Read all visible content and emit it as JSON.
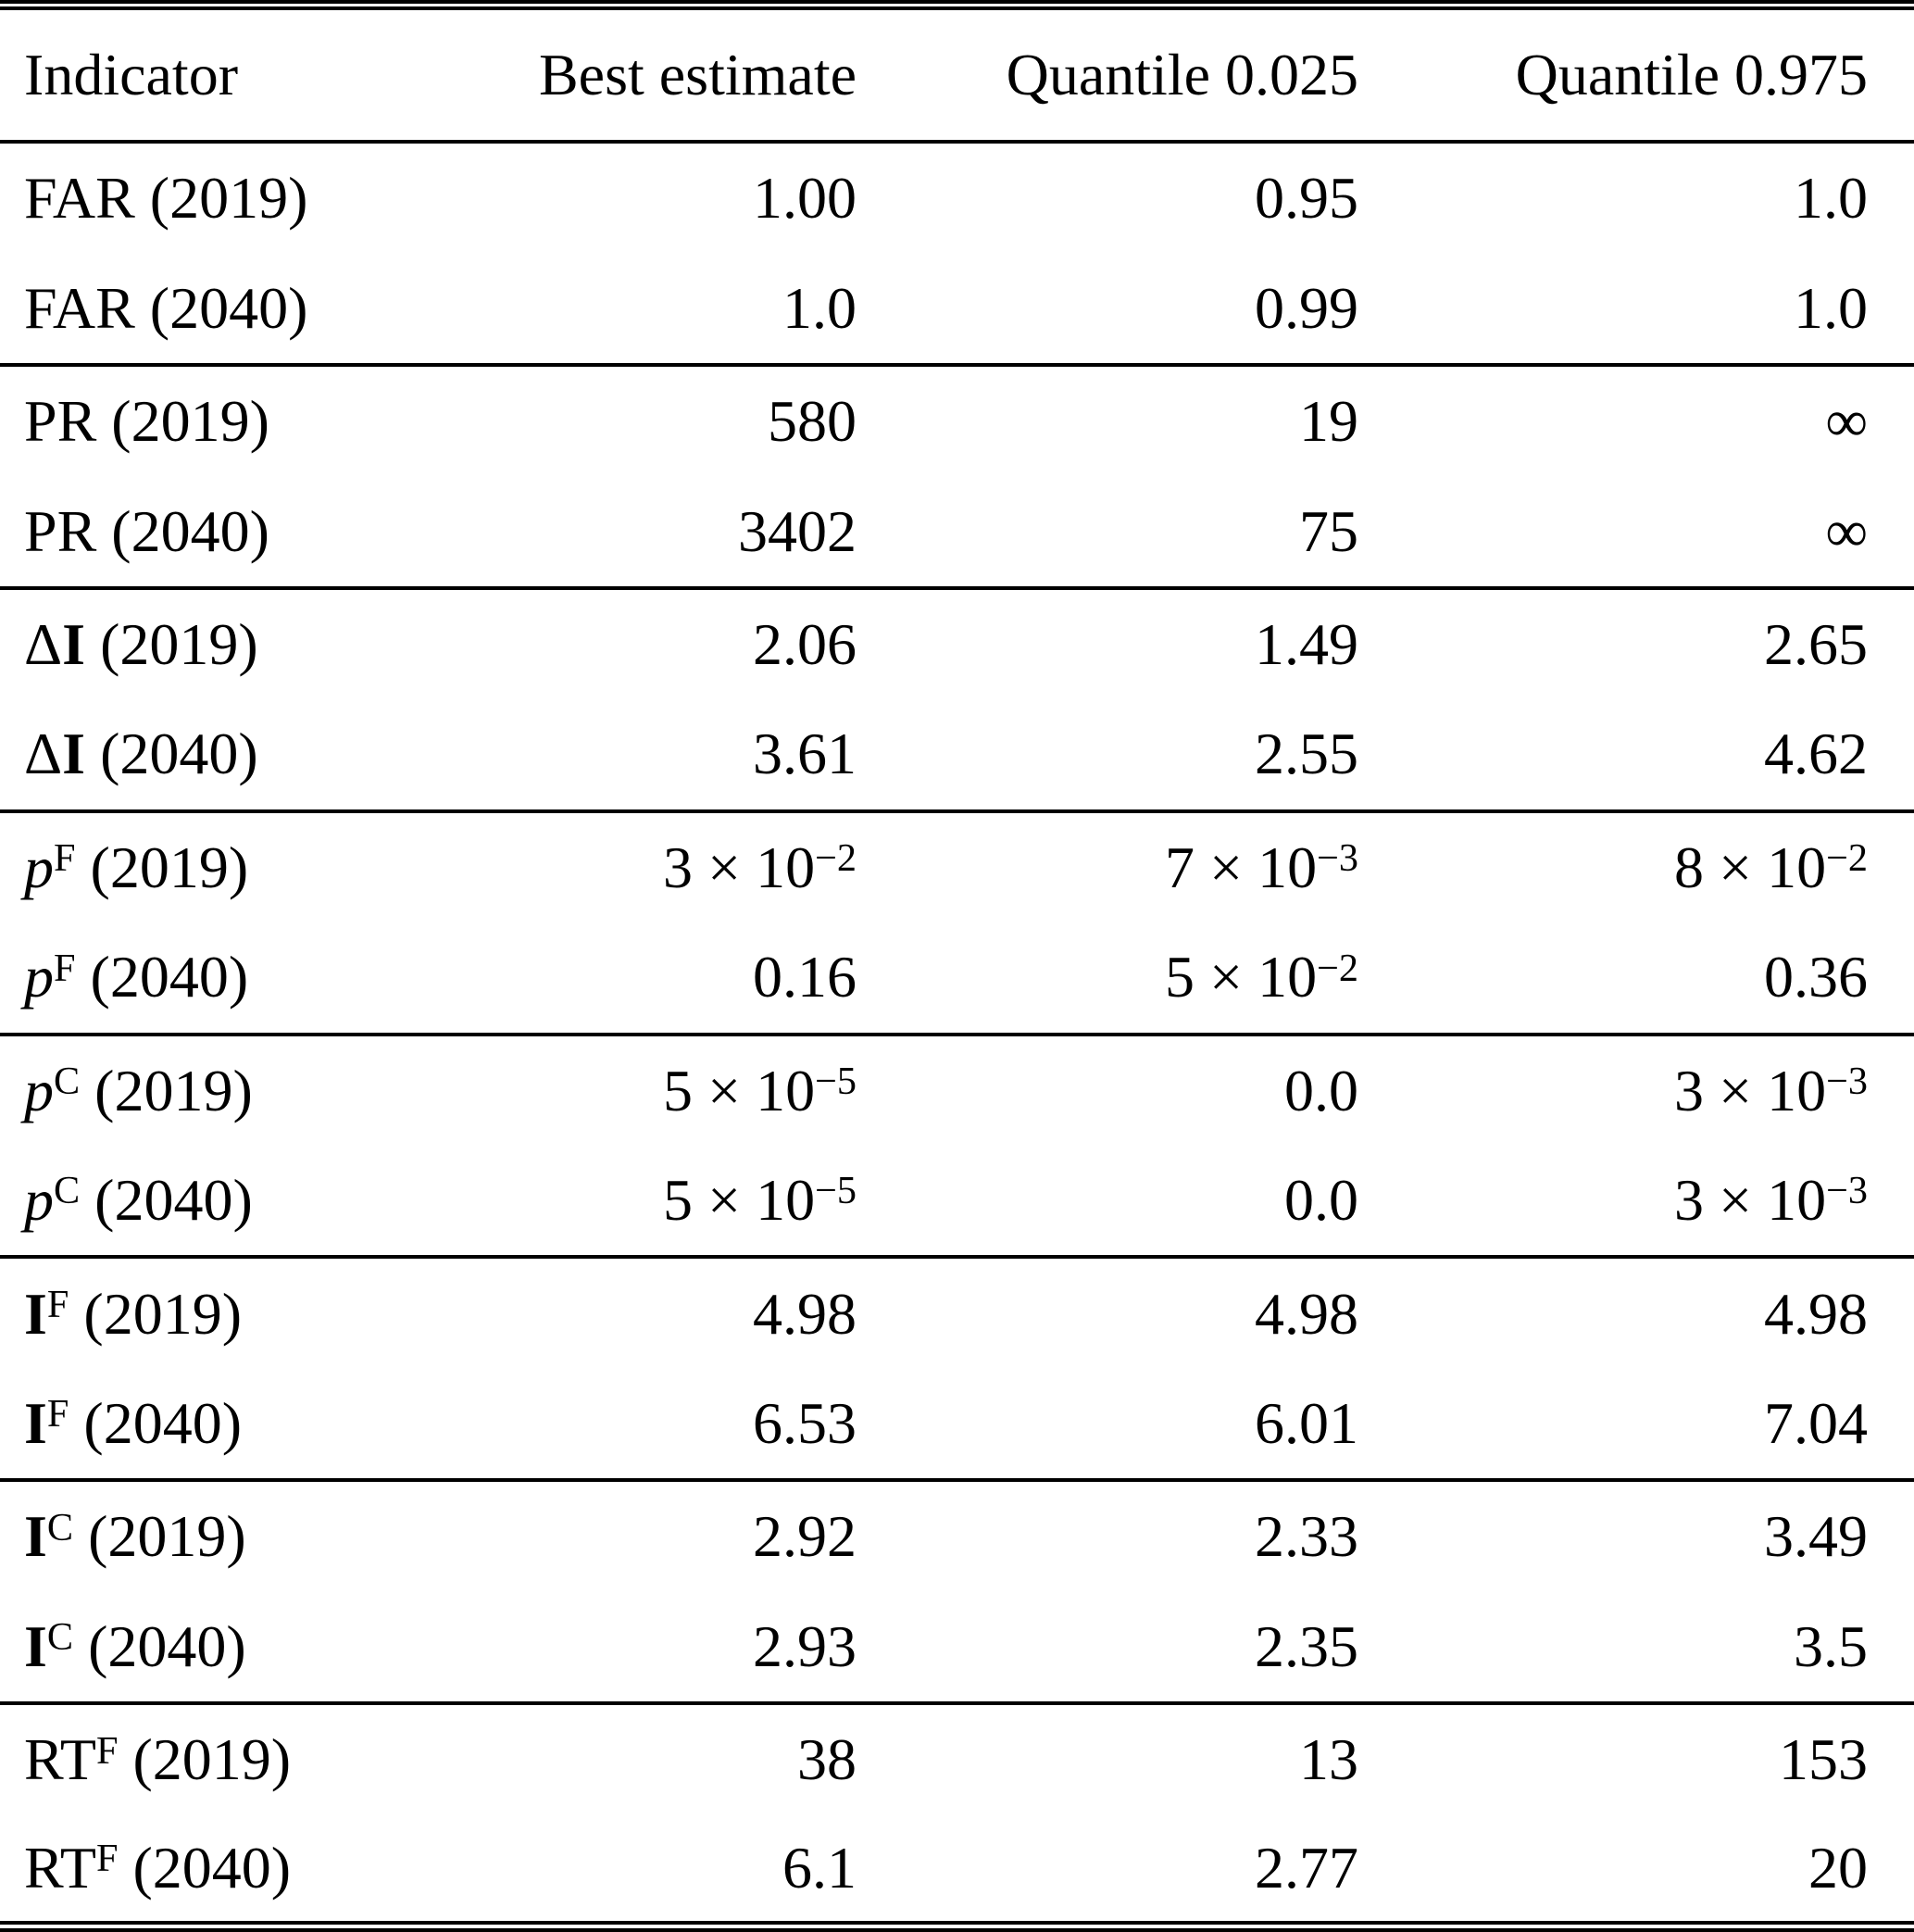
{
  "table": {
    "columns": [
      "Indicator",
      "Best estimate",
      "Quantile 0.025",
      "Quantile 0.975"
    ],
    "groups": [
      {
        "rows": [
          {
            "indicator": {
              "prefix": "",
              "base": "FAR",
              "bold": false,
              "italic": false,
              "sup": "",
              "year": "(2019)"
            },
            "values": [
              "1.00",
              "0.95",
              "1.0"
            ]
          },
          {
            "indicator": {
              "prefix": "",
              "base": "FAR",
              "bold": false,
              "italic": false,
              "sup": "",
              "year": "(2040)"
            },
            "values": [
              "1.0",
              "0.99",
              "1.0"
            ]
          }
        ]
      },
      {
        "rows": [
          {
            "indicator": {
              "prefix": "",
              "base": "PR",
              "bold": false,
              "italic": false,
              "sup": "",
              "year": "(2019)"
            },
            "values": [
              "580",
              "19",
              "∞"
            ]
          },
          {
            "indicator": {
              "prefix": "",
              "base": "PR",
              "bold": false,
              "italic": false,
              "sup": "",
              "year": "(2040)"
            },
            "values": [
              "3402",
              "75",
              "∞"
            ]
          }
        ]
      },
      {
        "rows": [
          {
            "indicator": {
              "prefix": "Δ",
              "base": "I",
              "bold": true,
              "italic": false,
              "sup": "",
              "year": "(2019)"
            },
            "values": [
              "2.06",
              "1.49",
              "2.65"
            ]
          },
          {
            "indicator": {
              "prefix": "Δ",
              "base": "I",
              "bold": true,
              "italic": false,
              "sup": "",
              "year": "(2040)"
            },
            "values": [
              "3.61",
              "2.55",
              "4.62"
            ]
          }
        ]
      },
      {
        "rows": [
          {
            "indicator": {
              "prefix": "",
              "base": "p",
              "bold": false,
              "italic": true,
              "sup": "F",
              "year": "(2019)"
            },
            "values": [
              "3 × 10^{−2}",
              "7 × 10^{−3}",
              "8 × 10^{−2}"
            ]
          },
          {
            "indicator": {
              "prefix": "",
              "base": "p",
              "bold": false,
              "italic": true,
              "sup": "F",
              "year": "(2040)"
            },
            "values": [
              "0.16",
              "5 × 10^{−2}",
              "0.36"
            ]
          }
        ]
      },
      {
        "rows": [
          {
            "indicator": {
              "prefix": "",
              "base": "p",
              "bold": false,
              "italic": true,
              "sup": "C",
              "year": "(2019)"
            },
            "values": [
              "5 × 10^{−5}",
              "0.0",
              "3 × 10^{−3}"
            ]
          },
          {
            "indicator": {
              "prefix": "",
              "base": "p",
              "bold": false,
              "italic": true,
              "sup": "C",
              "year": "(2040)"
            },
            "values": [
              "5 × 10^{−5}",
              "0.0",
              "3 × 10^{−3}"
            ]
          }
        ]
      },
      {
        "rows": [
          {
            "indicator": {
              "prefix": "",
              "base": "I",
              "bold": true,
              "italic": false,
              "sup": "F",
              "year": "(2019)"
            },
            "values": [
              "4.98",
              "4.98",
              "4.98"
            ]
          },
          {
            "indicator": {
              "prefix": "",
              "base": "I",
              "bold": true,
              "italic": false,
              "sup": "F",
              "year": "(2040)"
            },
            "values": [
              "6.53",
              "6.01",
              "7.04"
            ]
          }
        ]
      },
      {
        "rows": [
          {
            "indicator": {
              "prefix": "",
              "base": "I",
              "bold": true,
              "italic": false,
              "sup": "C",
              "year": "(2019)"
            },
            "values": [
              "2.92",
              "2.33",
              "3.49"
            ]
          },
          {
            "indicator": {
              "prefix": "",
              "base": "I",
              "bold": true,
              "italic": false,
              "sup": "C",
              "year": "(2040)"
            },
            "values": [
              "2.93",
              "2.35",
              "3.5"
            ]
          }
        ]
      },
      {
        "rows": [
          {
            "indicator": {
              "prefix": "",
              "base": "RT",
              "bold": false,
              "italic": false,
              "sup": "F",
              "year": "(2019)"
            },
            "values": [
              "38",
              "13",
              "153"
            ]
          },
          {
            "indicator": {
              "prefix": "",
              "base": "RT",
              "bold": false,
              "italic": false,
              "sup": "F",
              "year": "(2040)"
            },
            "values": [
              "6.1",
              "2.77",
              "20"
            ]
          }
        ]
      }
    ]
  }
}
